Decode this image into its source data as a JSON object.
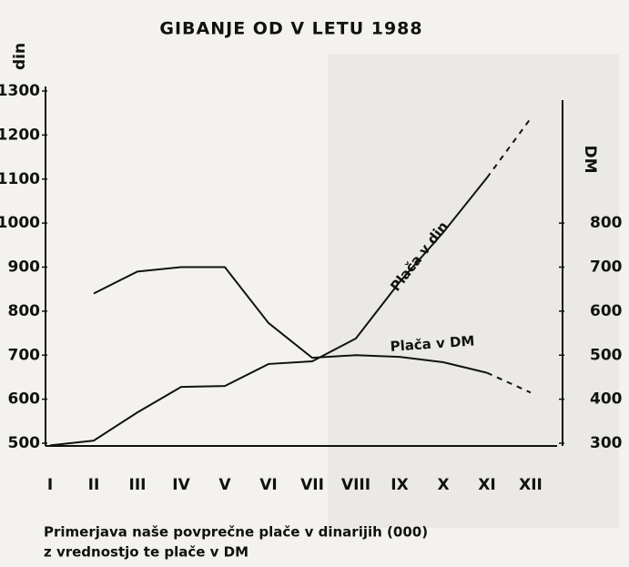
{
  "chart_data": {
    "type": "line",
    "title": "GIBANJE OD V LETU 1988",
    "y_label": "din",
    "y2_label": "DM",
    "categories": [
      "I",
      "II",
      "III",
      "IV",
      "V",
      "VI",
      "VII",
      "VIII",
      "IX",
      "X",
      "XI",
      "XII"
    ],
    "series": [
      {
        "name": "Plača v din",
        "color": "#111111",
        "values": [
          495,
          506,
          570,
          628,
          630,
          680,
          686,
          738,
          866,
          979,
          1103,
          1238
        ]
      },
      {
        "name": "Plača v DM",
        "color": "#111111",
        "axis": "y2",
        "values": [
          null,
          640,
          690,
          700,
          700,
          573,
          494,
          500,
          496,
          484,
          460,
          415
        ]
      }
    ],
    "ylim": [
      500,
      1300
    ],
    "yticks": [
      500,
      600,
      700,
      800,
      900,
      1000,
      1100,
      1200,
      1300
    ],
    "y2lim": [
      300,
      1100
    ],
    "y2ticks": [
      300,
      400,
      500,
      600,
      700,
      800
    ],
    "caption": [
      "Primerjava naše povprečne plače v dinarijih (000)",
      "z vrednostjo te plače v DM"
    ]
  }
}
